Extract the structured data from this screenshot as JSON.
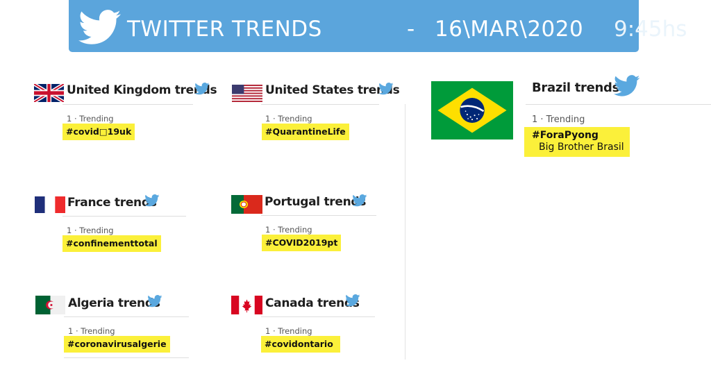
{
  "banner": {
    "title": "TWITTER TRENDS",
    "dash": "-",
    "date": "16\\MAR\\2020",
    "time": "9:45hs",
    "bg_color": "#5ba5dc",
    "icon": "twitter-bird-icon"
  },
  "highlight_color": "#fbf03a",
  "countries": {
    "uk": {
      "title": "United Kingdom trends",
      "rank": "1 · Trending",
      "tag": "#covid□19uk",
      "flag": "uk-flag"
    },
    "us": {
      "title": "United States trends",
      "rank": "1 · Trending",
      "tag": "#QuarantineLife",
      "flag": "us-flag"
    },
    "fr": {
      "title": "France trends",
      "rank": "1 · Trending",
      "tag": "#confinementtotal",
      "flag": "france-flag"
    },
    "pt": {
      "title": "Portugal trends",
      "rank": "1 · Trending",
      "tag": "#COVID2019pt",
      "flag": "portugal-flag"
    },
    "dz": {
      "title": "Algeria trends",
      "rank": "1 · Trending",
      "tag": "#coronavirusalgerie",
      "flag": "algeria-flag"
    },
    "ca": {
      "title": "Canada trends",
      "rank": "1 · Trending",
      "tag": "#covidontario",
      "flag": "canada-flag"
    },
    "br": {
      "title": "Brazil trends",
      "rank": "1 · Trending",
      "tag": "#ForaPyong",
      "subtitle": "Big Brother Brasil",
      "flag": "brazil-flag"
    }
  }
}
